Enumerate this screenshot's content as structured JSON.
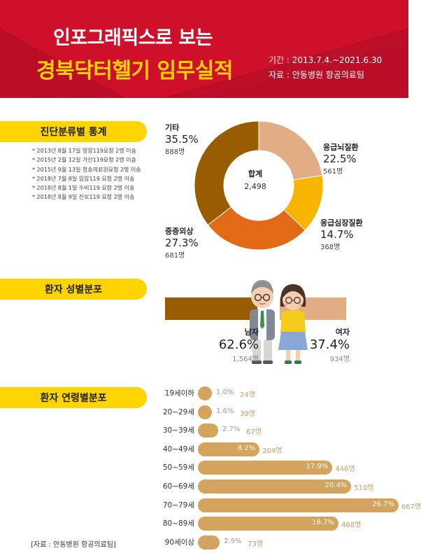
{
  "header": {
    "title_line1": "인포그래픽스로 보는",
    "title_line2": "경북닥터헬기 임무실적",
    "period": "기간 : 2013.7.4.~2021.6.30",
    "source": "자료 : 안동병원 항공의료팀"
  },
  "sections": {
    "diagnosis": "진단분류별 통계",
    "gender": "환자 성별분포",
    "age": "환자 연령별분포"
  },
  "notes": [
    "* 2013년 8월 17일 영양119요청 2명 이송",
    "* 2015년 2월 12일 가산119요청 2명 이송",
    "* 2015년 9월 13일 청송의료원요청 2명 이송",
    "* 2018년 7월 8일 입암119 요청 2명 이송",
    "* 2018년 8월 1일 수비119 요청 2명 이송",
    "* 2018년 8월 9일 진보119 요청 2명 이송"
  ],
  "colors": {
    "header_red": "#c8102e",
    "title_yellow": "#ffd200",
    "pill_yellow": "#ffd400",
    "cat_etc": "#9a5c00",
    "cat_brain": "#e2ad84",
    "cat_heart": "#f7b500",
    "cat_trauma": "#e26a16",
    "age_bar": "#d4a45f"
  },
  "chart_data": [
    {
      "type": "pie",
      "name": "diagnosis",
      "center_label": "합계",
      "center_value": "2,498",
      "slices": [
        {
          "label": "응급뇌질환",
          "percent": 22.5,
          "percent_text": "22.5%",
          "count": 561,
          "count_text": "561명",
          "color": "#e2ad84"
        },
        {
          "label": "응급심장질환",
          "percent": 14.7,
          "percent_text": "14.7%",
          "count": 368,
          "count_text": "368명",
          "color": "#f7b500"
        },
        {
          "label": "중증외상",
          "percent": 27.3,
          "percent_text": "27.3%",
          "count": 681,
          "count_text": "681명",
          "color": "#e26a16"
        },
        {
          "label": "기타",
          "percent": 35.5,
          "percent_text": "35.5%",
          "count": 888,
          "count_text": "888명",
          "color": "#9a5c00"
        }
      ]
    },
    {
      "type": "bar",
      "name": "gender",
      "categories": [
        "남자",
        "여자"
      ],
      "values": [
        62.6,
        37.4
      ],
      "percent_text": [
        "62.6%",
        "37.4%"
      ],
      "counts": [
        1564,
        934
      ],
      "count_text": [
        "1,564명",
        "934명"
      ]
    },
    {
      "type": "bar",
      "name": "age",
      "orientation": "horizontal",
      "categories": [
        "19세이하",
        "20~29세",
        "30~39세",
        "40~49세",
        "50~59세",
        "60~69세",
        "70~79세",
        "80~89세",
        "90세이상"
      ],
      "percent": [
        1.0,
        1.6,
        2.7,
        8.2,
        17.9,
        20.4,
        26.7,
        18.7,
        2.9
      ],
      "percent_text": [
        "1.0%",
        "1.6%",
        "2.7%",
        "8.2%",
        "17.9%",
        "20.4%",
        "26.7%",
        "18.7%",
        "2.9%"
      ],
      "counts": [
        24,
        39,
        67,
        204,
        446,
        510,
        667,
        468,
        73
      ],
      "count_text": [
        "24명",
        "39명",
        "67명",
        "204명",
        "446명",
        "510명",
        "667명",
        "468명",
        "73명"
      ]
    }
  ],
  "footer": {
    "source": "[자료 : 안동병원 항공의료팀]"
  }
}
